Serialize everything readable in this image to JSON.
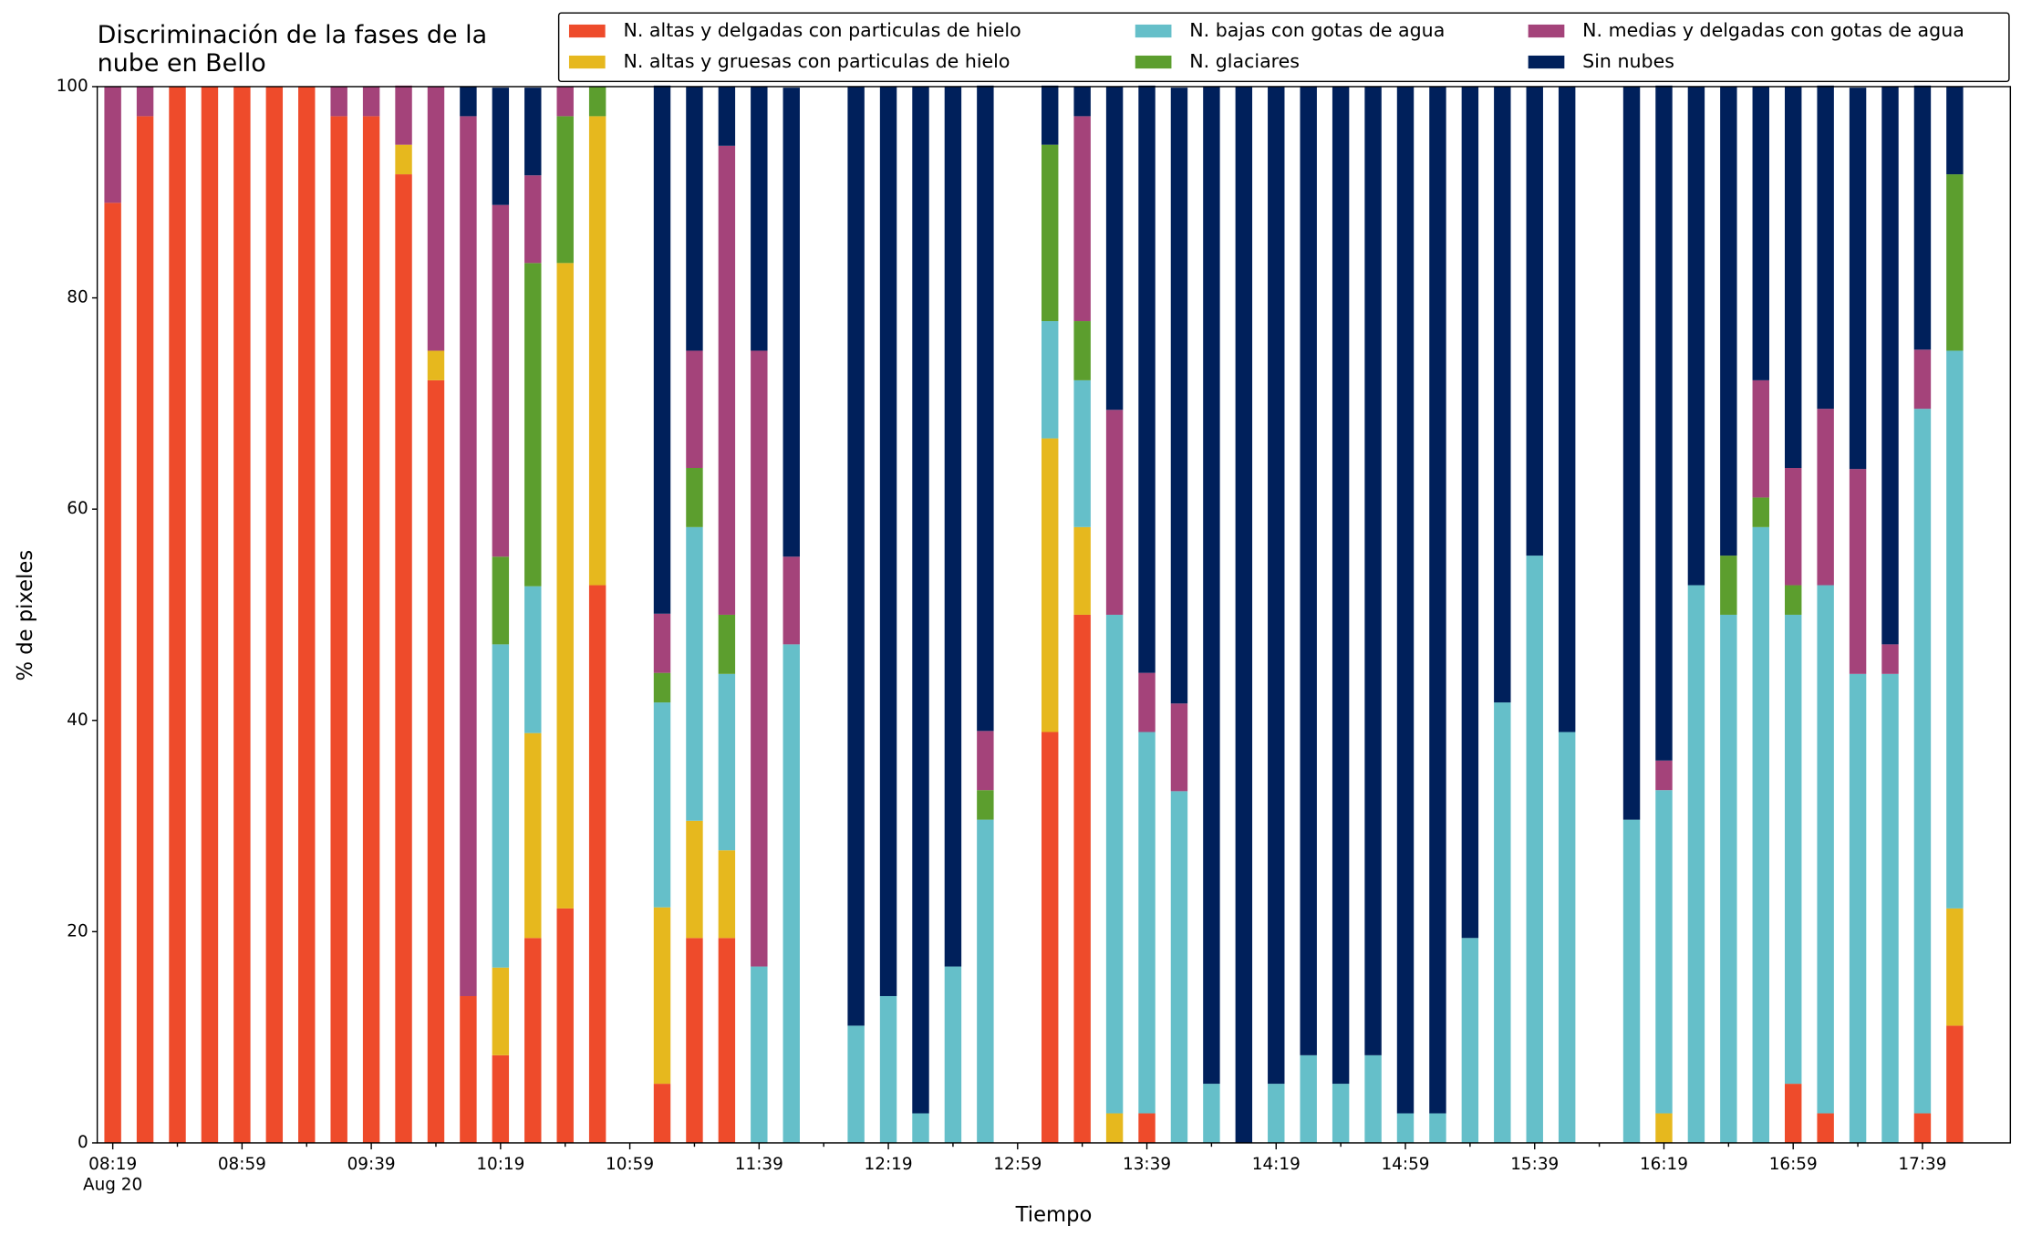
{
  "chart_data": {
    "type": "stacked_bar",
    "title": "Discriminación de la fases de la nube en Bello",
    "xlabel": "Tiempo",
    "ylabel": "% de pixeles",
    "x_date_label": "Aug 20",
    "categories": [
      "08:19",
      null,
      null,
      null,
      "08:59",
      null,
      null,
      null,
      "09:39",
      null,
      null,
      null,
      "10:19",
      null,
      null,
      null,
      "10:59",
      null,
      null,
      null,
      "11:39",
      null,
      null,
      null,
      "12:19",
      null,
      null,
      null,
      "12:59",
      null,
      null,
      null,
      "13:39",
      null,
      null,
      null,
      "14:19",
      null,
      null,
      null,
      "14:59",
      null,
      null,
      null,
      "15:39",
      null,
      null,
      null,
      "16:19",
      null,
      null,
      null,
      "16:59",
      null,
      null,
      null,
      "17:39",
      null
    ],
    "ylim": [
      0,
      100
    ],
    "yticks": [
      0,
      20,
      40,
      60,
      80,
      100
    ],
    "legend": "top",
    "series": [
      {
        "name": "N. altas y delgadas con particulas de hielo",
        "color": "#ee4b2b",
        "values": [
          89,
          97.2,
          100,
          100,
          100,
          100,
          100,
          97.2,
          97.2,
          91.7,
          72.2,
          13.9,
          8.3,
          19.4,
          22.2,
          52.8,
          null,
          5.6,
          19.4,
          19.4,
          0,
          0,
          null,
          0,
          0,
          0,
          0,
          0,
          null,
          38.9,
          50,
          0,
          2.8,
          0,
          0,
          0,
          0,
          0,
          0,
          0,
          0,
          0,
          0,
          0,
          0,
          0,
          null,
          0,
          0,
          0,
          0,
          0,
          5.6,
          2.8,
          0,
          0,
          2.8,
          11.1
        ]
      },
      {
        "name": "N. altas y gruesas con particulas de hielo",
        "color": "#e6b81e",
        "values": [
          0,
          0,
          0,
          0,
          0,
          0,
          0,
          0,
          0,
          2.8,
          2.8,
          0,
          8.3,
          19.4,
          61.1,
          44.4,
          null,
          16.7,
          11.1,
          8.3,
          0,
          0,
          null,
          0,
          0,
          0,
          0,
          0,
          null,
          27.8,
          8.3,
          2.8,
          0,
          0,
          0,
          0,
          0,
          0,
          0,
          0,
          0,
          0,
          0,
          0,
          0,
          0,
          null,
          0,
          2.8,
          0,
          0,
          0,
          0,
          0,
          0,
          0,
          0,
          11.1
        ]
      },
      {
        "name": "N. bajas con gotas de agua",
        "color": "#65bfc9",
        "values": [
          0,
          0,
          0,
          0,
          0,
          0,
          0,
          0,
          0,
          0,
          0,
          0,
          30.6,
          13.9,
          0,
          0,
          null,
          19.4,
          27.8,
          16.7,
          16.7,
          47.2,
          null,
          11.1,
          13.9,
          2.8,
          16.7,
          30.6,
          null,
          11.1,
          13.9,
          47.2,
          36.1,
          33.3,
          5.6,
          0,
          5.6,
          8.3,
          5.6,
          8.3,
          2.8,
          2.8,
          19.4,
          41.7,
          55.6,
          38.9,
          null,
          30.6,
          30.6,
          52.8,
          50,
          58.3,
          44.4,
          50,
          44.4,
          44.4,
          66.7,
          52.8
        ]
      },
      {
        "name": "N. glaciares",
        "color": "#5c9e2e",
        "values": [
          0,
          0,
          0,
          0,
          0,
          0,
          0,
          0,
          0,
          0,
          0,
          0,
          8.3,
          30.6,
          13.9,
          2.8,
          null,
          2.8,
          5.6,
          5.6,
          0,
          0,
          null,
          0,
          0,
          0,
          0,
          2.8,
          null,
          16.7,
          5.6,
          0,
          0,
          0,
          0,
          0,
          0,
          0,
          0,
          0,
          0,
          0,
          0,
          0,
          0,
          0,
          null,
          0,
          0,
          0,
          5.6,
          2.8,
          2.8,
          0,
          0,
          0,
          0,
          16.7
        ]
      },
      {
        "name": "N. medias y delgadas con gotas de agua",
        "color": "#a4437a",
        "values": [
          11,
          2.8,
          0,
          0,
          0,
          0,
          0,
          2.8,
          2.8,
          5.6,
          25,
          83.3,
          33.3,
          8.3,
          2.8,
          0,
          null,
          5.6,
          11.1,
          44.4,
          58.3,
          8.3,
          null,
          0,
          0,
          0,
          0,
          5.6,
          null,
          0,
          19.4,
          19.4,
          5.6,
          8.3,
          0,
          0,
          0,
          0,
          0,
          0,
          0,
          0,
          0,
          0,
          0,
          0,
          null,
          0,
          2.8,
          0,
          0,
          11.1,
          11.1,
          16.7,
          19.4,
          2.8,
          5.6,
          0
        ]
      },
      {
        "name": "Sin nubes",
        "color": "#00205b",
        "values": [
          0,
          0,
          0,
          0,
          0,
          0,
          0,
          0,
          0,
          0,
          0,
          2.8,
          11.1,
          8.3,
          0,
          0,
          null,
          50,
          25,
          5.6,
          25,
          44.4,
          null,
          88.9,
          86.1,
          97.2,
          83.3,
          61.1,
          null,
          5.6,
          2.8,
          30.6,
          55.6,
          58.3,
          94.4,
          100,
          94.4,
          91.7,
          94.4,
          91.7,
          97.2,
          97.2,
          80.6,
          58.3,
          44.4,
          61.1,
          null,
          69.4,
          63.9,
          47.2,
          44.4,
          27.8,
          36.1,
          30.6,
          36.1,
          52.8,
          25,
          8.3
        ]
      }
    ]
  }
}
